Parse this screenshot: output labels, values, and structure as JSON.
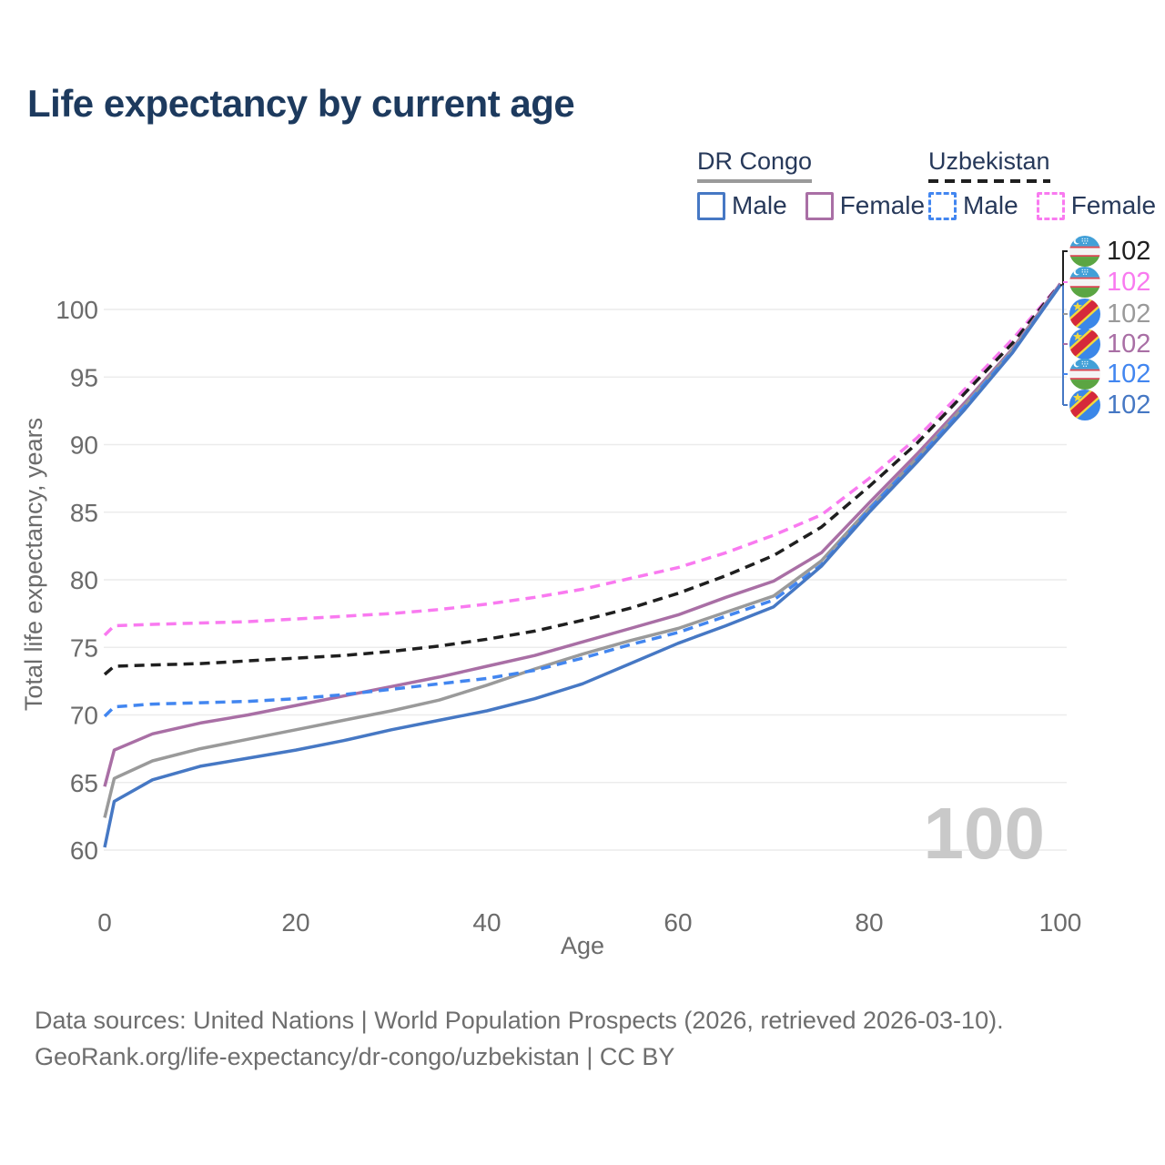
{
  "title": "Life expectancy by current age",
  "legend": {
    "groups": [
      {
        "label": "DR Congo",
        "line_style": "solid",
        "underline_color": "#9a9a9a",
        "items": [
          {
            "label": "Male",
            "color": "#4678c4"
          },
          {
            "label": "Female",
            "color": "#a96fa5"
          }
        ]
      },
      {
        "label": "Uzbekistan",
        "line_style": "dashed",
        "underline_color": "#1f1f1f",
        "items": [
          {
            "label": "Male",
            "color": "#4286f0"
          },
          {
            "label": "Female",
            "color": "#f97af0"
          }
        ]
      }
    ]
  },
  "chart_data": {
    "type": "line",
    "title": "Life expectancy by current age",
    "xlabel": "Age",
    "ylabel": "Total life expectancy, years",
    "xlim": [
      0,
      100
    ],
    "ylim": [
      58.5,
      103
    ],
    "xticks": [
      0,
      20,
      40,
      60,
      80,
      100
    ],
    "yticks": [
      60,
      65,
      70,
      75,
      80,
      85,
      90,
      95,
      100
    ],
    "grid": "horizontal",
    "gridline_color": "#ececec",
    "tick_color": "#6b6b6b",
    "age_watermark": "100",
    "watermark_color": "#c9c9c9",
    "x": [
      0,
      1,
      5,
      10,
      15,
      20,
      25,
      30,
      35,
      40,
      45,
      50,
      55,
      60,
      65,
      70,
      75,
      80,
      85,
      90,
      95,
      100
    ],
    "series": [
      {
        "name": "Uzbekistan Female",
        "country": "Uzbekistan",
        "sex": "Female",
        "color": "#f97af0",
        "dash": true,
        "flag": "uz",
        "end_label": "102",
        "values": [
          75.9,
          76.6,
          76.7,
          76.8,
          76.9,
          77.1,
          77.3,
          77.5,
          77.8,
          78.2,
          78.7,
          79.3,
          80.1,
          80.9,
          82.0,
          83.3,
          84.8,
          87.5,
          90.5,
          94.1,
          97.8,
          101.9
        ]
      },
      {
        "name": "Uzbekistan",
        "country": "Uzbekistan",
        "sex": "Both sexes",
        "color": "#1f1f1f",
        "dash": true,
        "flag": "uz",
        "end_label": "102",
        "values": [
          73.0,
          73.6,
          73.7,
          73.8,
          74.0,
          74.2,
          74.4,
          74.7,
          75.1,
          75.6,
          76.2,
          77.0,
          77.9,
          79.0,
          80.3,
          81.8,
          83.9,
          86.9,
          90.1,
          93.8,
          97.5,
          101.9
        ]
      },
      {
        "name": "DR Congo Female",
        "country": "DR Congo",
        "sex": "Female",
        "color": "#a96fa5",
        "dash": false,
        "flag": "cd",
        "end_label": "102",
        "values": [
          64.7,
          67.4,
          68.6,
          69.4,
          70.0,
          70.7,
          71.4,
          72.1,
          72.8,
          73.6,
          74.4,
          75.4,
          76.4,
          77.4,
          78.7,
          79.9,
          82.0,
          85.7,
          89.3,
          93.1,
          97.1,
          101.9
        ]
      },
      {
        "name": "DR Congo",
        "country": "DR Congo",
        "sex": "Both sexes",
        "color": "#9a9a9a",
        "dash": false,
        "flag": "cd",
        "end_label": "102",
        "values": [
          62.4,
          65.3,
          66.6,
          67.5,
          68.2,
          68.9,
          69.6,
          70.3,
          71.1,
          72.2,
          73.4,
          74.5,
          75.5,
          76.4,
          77.6,
          78.8,
          81.4,
          85.3,
          89.0,
          92.9,
          97.0,
          101.8
        ]
      },
      {
        "name": "Uzbekistan Male",
        "country": "Uzbekistan",
        "sex": "Male",
        "color": "#4286f0",
        "dash": true,
        "flag": "uz",
        "end_label": "102",
        "values": [
          69.9,
          70.6,
          70.8,
          70.9,
          71.0,
          71.2,
          71.5,
          71.9,
          72.3,
          72.7,
          73.3,
          74.2,
          75.2,
          76.1,
          77.3,
          78.5,
          81.1,
          85.2,
          88.9,
          92.8,
          96.9,
          101.8
        ]
      },
      {
        "name": "DR Congo Male",
        "country": "DR Congo",
        "sex": "Male",
        "color": "#4678c4",
        "dash": false,
        "flag": "cd",
        "end_label": "102",
        "values": [
          60.2,
          63.6,
          65.2,
          66.2,
          66.8,
          67.4,
          68.1,
          68.9,
          69.6,
          70.3,
          71.2,
          72.3,
          73.8,
          75.3,
          76.6,
          78.0,
          81.0,
          85.0,
          88.7,
          92.6,
          96.8,
          101.8
        ]
      }
    ],
    "end_labels_order": [
      "Uzbekistan",
      "Uzbekistan Female",
      "DR Congo",
      "DR Congo Female",
      "Uzbekistan Male",
      "DR Congo Male"
    ]
  },
  "footer": {
    "lines": [
      "Data sources: United Nations | World Population Prospects (2026, retrieved 2026-03-10).",
      "GeoRank.org/life-expectancy/dr-congo/uzbekistan | CC BY"
    ]
  }
}
